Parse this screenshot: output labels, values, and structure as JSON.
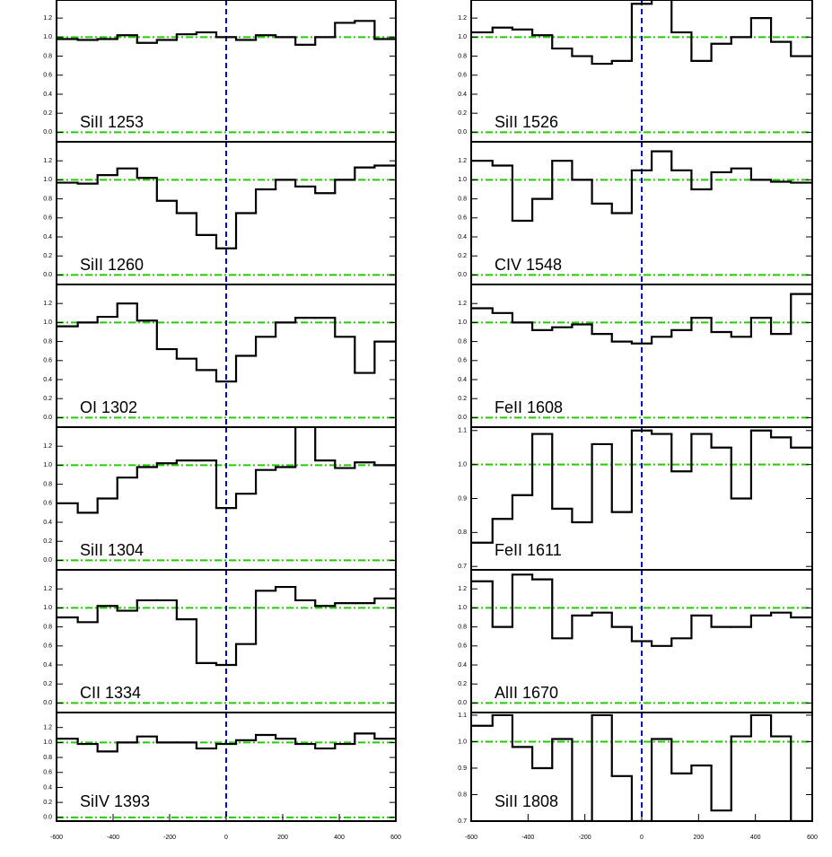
{
  "chart_data": [
    {
      "type": "step",
      "label": "SiII 1253",
      "color": "#000000",
      "x": [
        -560,
        -490,
        -420,
        -350,
        -280,
        -210,
        -140,
        -70,
        0,
        70,
        140,
        210,
        280,
        350,
        420,
        490,
        560
      ],
      "values": [
        0.98,
        0.97,
        0.98,
        1.02,
        0.94,
        0.97,
        1.03,
        1.05,
        1.0,
        0.97,
        1.02,
        1.0,
        0.92,
        1.0,
        1.15,
        1.17,
        0.98
      ],
      "xlim": [
        -600,
        600
      ],
      "ylim": [
        -0.1,
        1.39
      ],
      "yticks": [
        {
          "value": 0,
          "label": "0.0"
        },
        0.2,
        0.4,
        0.6,
        0.8,
        {
          "value": 1,
          "label": "1.0"
        },
        1.2
      ],
      "hlines": [
        0,
        1
      ],
      "hline_color": "#22cc00",
      "vline": 0,
      "vline_color": "#0000dd"
    },
    {
      "type": "step",
      "label": "SiII 1260",
      "color": "#000000",
      "x": [
        -560,
        -490,
        -420,
        -350,
        -280,
        -210,
        -140,
        -70,
        0,
        70,
        140,
        210,
        280,
        350,
        420,
        490,
        560
      ],
      "values": [
        0.97,
        0.96,
        1.05,
        1.12,
        1.02,
        0.78,
        0.65,
        0.42,
        0.28,
        0.65,
        0.9,
        1.0,
        0.93,
        0.86,
        1.0,
        1.13,
        1.15
      ],
      "xlim": [
        -600,
        600
      ],
      "ylim": [
        -0.1,
        1.4
      ],
      "yticks": [
        {
          "value": 0,
          "label": "0.0"
        },
        0.2,
        0.4,
        0.6,
        0.8,
        {
          "value": 1,
          "label": "1.0"
        },
        1.2
      ],
      "hlines": [
        0,
        1
      ],
      "hline_color": "#22cc00",
      "vline": 0,
      "vline_color": "#0000dd"
    },
    {
      "type": "step",
      "label": "OI 1302",
      "color": "#000000",
      "x": [
        -560,
        -490,
        -420,
        -350,
        -280,
        -210,
        -140,
        -70,
        0,
        70,
        140,
        210,
        280,
        350,
        420,
        490,
        560
      ],
      "values": [
        0.96,
        1.0,
        1.06,
        1.2,
        1.02,
        0.72,
        0.62,
        0.5,
        0.38,
        0.65,
        0.85,
        1.0,
        1.05,
        1.05,
        0.85,
        0.47,
        0.8
      ],
      "xlim": [
        -600,
        600
      ],
      "ylim": [
        -0.1,
        1.4
      ],
      "yticks": [
        {
          "value": 0,
          "label": "0.0"
        },
        0.2,
        0.4,
        0.6,
        0.8,
        {
          "value": 1,
          "label": "1.0"
        },
        1.2
      ],
      "hlines": [
        0,
        1
      ],
      "hline_color": "#22cc00",
      "vline": 0,
      "vline_color": "#0000dd"
    },
    {
      "type": "step",
      "label": "SiII 1304",
      "color": "#000000",
      "x": [
        -560,
        -490,
        -420,
        -350,
        -280,
        -210,
        -140,
        -70,
        0,
        70,
        140,
        210,
        280,
        350,
        420,
        490,
        560
      ],
      "values": [
        0.6,
        0.5,
        0.65,
        0.87,
        0.98,
        1.02,
        1.05,
        1.05,
        0.55,
        0.7,
        0.95,
        0.98,
        1.45,
        1.05,
        0.97,
        1.03,
        1.0
      ],
      "xlim": [
        -600,
        600
      ],
      "ylim": [
        -0.1,
        1.4
      ],
      "yticks": [
        {
          "value": 0,
          "label": "0.0"
        },
        0.2,
        0.4,
        0.6,
        0.8,
        {
          "value": 1,
          "label": "1.0"
        },
        1.2
      ],
      "hlines": [
        0,
        1
      ],
      "hline_color": "#22cc00",
      "vline": 0,
      "vline_color": "#0000dd"
    },
    {
      "type": "step",
      "label": "CII 1334",
      "color": "#000000",
      "x": [
        -560,
        -490,
        -420,
        -350,
        -280,
        -210,
        -140,
        -70,
        0,
        70,
        140,
        210,
        280,
        350,
        420,
        490,
        560
      ],
      "values": [
        0.9,
        0.85,
        1.02,
        0.97,
        1.08,
        1.08,
        0.88,
        0.42,
        0.4,
        0.62,
        1.18,
        1.22,
        1.08,
        1.02,
        1.05,
        1.05,
        1.1
      ],
      "xlim": [
        -600,
        600
      ],
      "ylim": [
        -0.1,
        1.4
      ],
      "yticks": [
        {
          "value": 0,
          "label": "0.0"
        },
        0.2,
        0.4,
        0.6,
        0.8,
        {
          "value": 1,
          "label": "1.0"
        },
        1.2
      ],
      "hlines": [
        0,
        1
      ],
      "hline_color": "#22cc00",
      "vline": 0,
      "vline_color": "#0000dd"
    },
    {
      "type": "step",
      "label": "SiIV 1393",
      "color": "#000000",
      "x": [
        -560,
        -490,
        -420,
        -350,
        -280,
        -210,
        -140,
        -70,
        0,
        70,
        140,
        210,
        280,
        350,
        420,
        490,
        560
      ],
      "values": [
        1.05,
        0.98,
        0.88,
        1.0,
        1.08,
        1.0,
        1.0,
        0.92,
        0.98,
        1.03,
        1.1,
        1.05,
        0.98,
        0.92,
        0.98,
        1.12,
        1.05
      ],
      "xlim": [
        -600,
        600
      ],
      "xticks": [
        -600,
        -400,
        -200,
        0,
        200,
        400,
        600
      ],
      "ylim": [
        -0.05,
        1.4
      ],
      "yticks": [
        {
          "value": 0,
          "label": "0.0"
        },
        0.2,
        0.4,
        0.6,
        0.8,
        {
          "value": 1,
          "label": "1.0"
        },
        1.2
      ],
      "hlines": [
        0,
        1
      ],
      "hline_color": "#22cc00",
      "vline": 0,
      "vline_color": "#0000dd"
    },
    {
      "type": "step",
      "label": "SiII 1526",
      "color": "#000000",
      "x": [
        -560,
        -490,
        -420,
        -350,
        -280,
        -210,
        -140,
        -70,
        0,
        70,
        140,
        210,
        280,
        350,
        420,
        490,
        560
      ],
      "values": [
        1.05,
        1.1,
        1.08,
        1.02,
        0.88,
        0.8,
        0.72,
        0.75,
        1.35,
        1.4,
        1.05,
        0.75,
        0.93,
        1.0,
        1.2,
        0.95,
        0.8
      ],
      "xlim": [
        -600,
        600
      ],
      "ylim": [
        -0.1,
        1.39
      ],
      "yticks": [
        {
          "value": 0,
          "label": "0.0"
        },
        0.2,
        0.4,
        0.6,
        0.8,
        {
          "value": 1,
          "label": "1.0"
        },
        1.2
      ],
      "hlines": [
        0,
        1
      ],
      "hline_color": "#22cc00",
      "vline": 0,
      "vline_color": "#0000dd"
    },
    {
      "type": "step",
      "label": "CIV 1548",
      "color": "#000000",
      "x": [
        -560,
        -490,
        -420,
        -350,
        -280,
        -210,
        -140,
        -70,
        0,
        70,
        140,
        210,
        280,
        350,
        420,
        490,
        560
      ],
      "values": [
        1.2,
        1.15,
        0.57,
        0.8,
        1.2,
        1.0,
        0.75,
        0.65,
        1.1,
        1.3,
        1.1,
        0.9,
        1.08,
        1.12,
        1.0,
        0.98,
        0.97
      ],
      "xlim": [
        -600,
        600
      ],
      "ylim": [
        -0.1,
        1.4
      ],
      "yticks": [
        {
          "value": 0,
          "label": "0.0"
        },
        0.2,
        0.4,
        0.6,
        0.8,
        {
          "value": 1,
          "label": "1.0"
        },
        1.2
      ],
      "hlines": [
        0,
        1
      ],
      "hline_color": "#22cc00",
      "vline": 0,
      "vline_color": "#0000dd"
    },
    {
      "type": "step",
      "label": "FeII 1608",
      "color": "#000000",
      "x": [
        -560,
        -490,
        -420,
        -350,
        -280,
        -210,
        -140,
        -70,
        0,
        70,
        140,
        210,
        280,
        350,
        420,
        490,
        560
      ],
      "values": [
        1.15,
        1.1,
        1.0,
        0.92,
        0.95,
        0.98,
        0.88,
        0.8,
        0.78,
        0.85,
        0.92,
        1.05,
        0.9,
        0.85,
        1.05,
        0.88,
        1.3
      ],
      "xlim": [
        -600,
        600
      ],
      "ylim": [
        -0.1,
        1.4
      ],
      "yticks": [
        {
          "value": 0,
          "label": "0.0"
        },
        0.2,
        0.4,
        0.6,
        0.8,
        {
          "value": 1,
          "label": "1.0"
        },
        1.2
      ],
      "hlines": [
        0,
        1
      ],
      "hline_color": "#22cc00",
      "vline": 0,
      "vline_color": "#0000dd"
    },
    {
      "type": "step",
      "label": "FeII 1611",
      "color": "#000000",
      "x": [
        -560,
        -490,
        -420,
        -350,
        -280,
        -210,
        -140,
        -70,
        0,
        70,
        140,
        210,
        280,
        350,
        420,
        490,
        560
      ],
      "values": [
        0.77,
        0.84,
        0.91,
        1.09,
        0.87,
        0.83,
        1.06,
        0.86,
        1.1,
        1.09,
        0.98,
        1.09,
        1.05,
        0.9,
        1.1,
        1.08,
        1.05
      ],
      "xlim": [
        -600,
        600
      ],
      "ylim": [
        0.69,
        1.11
      ],
      "yticks": [
        0.7,
        0.8,
        0.9,
        {
          "value": 1,
          "label": "1.0"
        },
        1.1
      ],
      "hlines": [
        1
      ],
      "hline_color": "#22cc00",
      "vline": 0,
      "vline_color": "#0000dd"
    },
    {
      "type": "step",
      "label": "AlII 1670",
      "color": "#000000",
      "x": [
        -560,
        -490,
        -420,
        -350,
        -280,
        -210,
        -140,
        -70,
        0,
        70,
        140,
        210,
        280,
        350,
        420,
        490,
        560
      ],
      "values": [
        1.28,
        0.8,
        1.35,
        1.3,
        0.68,
        0.92,
        0.95,
        0.8,
        0.65,
        0.6,
        0.68,
        0.92,
        0.8,
        0.8,
        0.92,
        0.95,
        0.9
      ],
      "xlim": [
        -600,
        600
      ],
      "ylim": [
        -0.1,
        1.4
      ],
      "yticks": [
        {
          "value": 0,
          "label": "0.0"
        },
        0.2,
        0.4,
        0.6,
        0.8,
        {
          "value": 1,
          "label": "1.0"
        },
        1.2
      ],
      "hlines": [
        0,
        1
      ],
      "hline_color": "#22cc00",
      "vline": 0,
      "vline_color": "#0000dd"
    },
    {
      "type": "step",
      "label": "SiII 1808",
      "color": "#000000",
      "x": [
        -560,
        -490,
        -420,
        -350,
        -280,
        -210,
        -140,
        -70,
        0,
        70,
        140,
        210,
        280,
        350,
        420,
        490,
        560
      ],
      "values": [
        1.06,
        1.1,
        0.98,
        0.9,
        1.01,
        0.7,
        1.1,
        0.87,
        0.7,
        1.01,
        0.88,
        0.91,
        0.74,
        1.02,
        1.1,
        1.02,
        0.7
      ],
      "xlim": [
        -600,
        600
      ],
      "xticks": [
        -600,
        -400,
        -200,
        0,
        200,
        400,
        600
      ],
      "ylim": [
        0.7,
        1.11
      ],
      "yticks": [
        0.7,
        0.8,
        0.9,
        {
          "value": 1,
          "label": "1.0"
        },
        1.1
      ],
      "hlines": [
        1
      ],
      "hline_color": "#22cc00",
      "vline": 0,
      "vline_color": "#0000dd"
    }
  ]
}
